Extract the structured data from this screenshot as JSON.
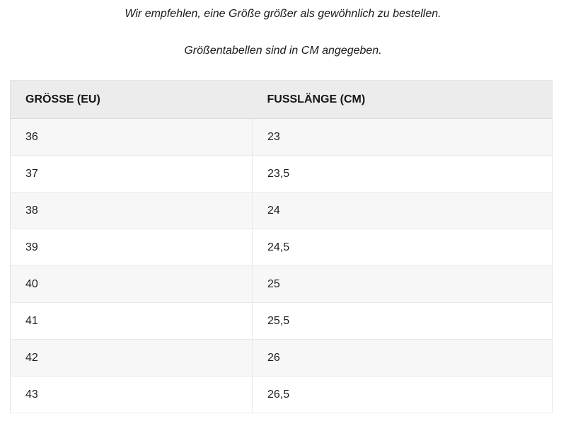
{
  "intro": {
    "line1": "Wir empfehlen, eine Größe größer als gewöhnlich zu bestellen.",
    "line2": "Größentabellen sind in CM angegeben."
  },
  "size_table": {
    "columns": [
      "GRÖSSE (EU)",
      "FUSSLÄNGE (CM)"
    ],
    "rows": [
      [
        "36",
        "23"
      ],
      [
        "37",
        "23,5"
      ],
      [
        "38",
        "24"
      ],
      [
        "39",
        "24,5"
      ],
      [
        "40",
        "25"
      ],
      [
        "41",
        "25,5"
      ],
      [
        "42",
        "26"
      ],
      [
        "43",
        "26,5"
      ]
    ]
  },
  "colors": {
    "header_bg": "#ececec",
    "row_alt_bg": "#f7f7f7",
    "border": "#e9e9e9",
    "header_border": "#d9d9d9",
    "text": "#1c1c1c"
  }
}
